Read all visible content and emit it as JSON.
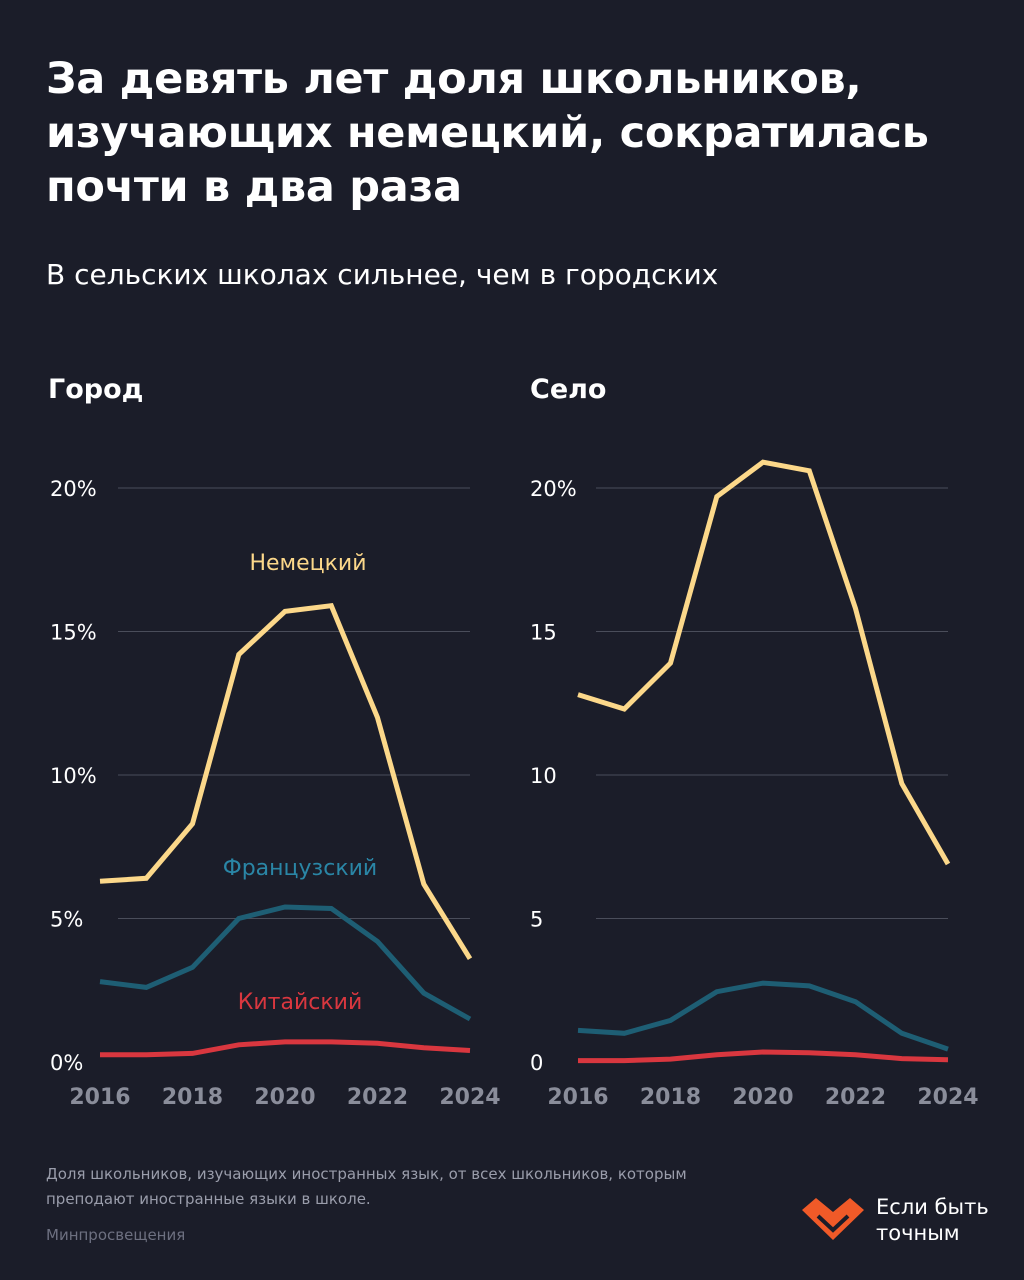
{
  "title": "За девять лет доля школьников, изучающих немецкий, сократилась почти в два раза",
  "subtitle": "В сельских школах сильнее, чем в городских",
  "footnote": "Доля школьников, изучающих иностранных язык, от всех школьников, которым преподают иностранные языки в школе.",
  "source": "Минпросвещения",
  "brand": {
    "line1": "Если быть",
    "line2": "точным",
    "logo_icon": "heart-logo-icon"
  },
  "colors": {
    "background": "#1b1d29",
    "german": "#fcd88a",
    "french": "#1e5e74",
    "french_label": "#2a86a6",
    "chinese": "#d9373f",
    "grid": "#4a4d5a",
    "logo": "#f05a28"
  },
  "chart_data": [
    {
      "type": "line",
      "title": "Город",
      "x": [
        2016,
        2017,
        2018,
        2019,
        2020,
        2021,
        2022,
        2023,
        2024
      ],
      "xticks": [
        "2016",
        "2018",
        "2020",
        "2022",
        "2024"
      ],
      "yticks": [
        "0%",
        "5%",
        "10%",
        "15%",
        "20%"
      ],
      "ylim": [
        0,
        20
      ],
      "grid": true,
      "series": [
        {
          "name": "Немецкий",
          "color": "#fcd88a",
          "values": [
            6.3,
            6.4,
            8.3,
            14.2,
            15.7,
            15.9,
            12.0,
            6.2,
            3.6
          ]
        },
        {
          "name": "Французский",
          "color": "#1e5e74",
          "values": [
            2.8,
            2.6,
            3.3,
            5.0,
            5.4,
            5.35,
            4.2,
            2.4,
            1.5
          ]
        },
        {
          "name": "Китайский",
          "color": "#d9373f",
          "values": [
            0.25,
            0.25,
            0.3,
            0.6,
            0.7,
            0.7,
            0.65,
            0.5,
            0.4
          ]
        }
      ]
    },
    {
      "type": "line",
      "title": "Село",
      "x": [
        2016,
        2017,
        2018,
        2019,
        2020,
        2021,
        2022,
        2023,
        2024
      ],
      "xticks": [
        "2016",
        "2018",
        "2020",
        "2022",
        "2024"
      ],
      "yticks": [
        "0",
        "5",
        "10",
        "15",
        "20%"
      ],
      "ylim": [
        0,
        20
      ],
      "grid": true,
      "series": [
        {
          "color": "#fcd88a",
          "values": [
            12.8,
            12.3,
            13.9,
            19.7,
            20.9,
            20.6,
            15.8,
            9.7,
            6.9
          ]
        },
        {
          "color": "#1e5e74",
          "values": [
            1.1,
            1.0,
            1.45,
            2.45,
            2.75,
            2.65,
            2.1,
            1.0,
            0.45
          ]
        },
        {
          "color": "#d9373f",
          "values": [
            0.05,
            0.05,
            0.1,
            0.25,
            0.35,
            0.32,
            0.25,
            0.12,
            0.08
          ]
        }
      ]
    }
  ]
}
